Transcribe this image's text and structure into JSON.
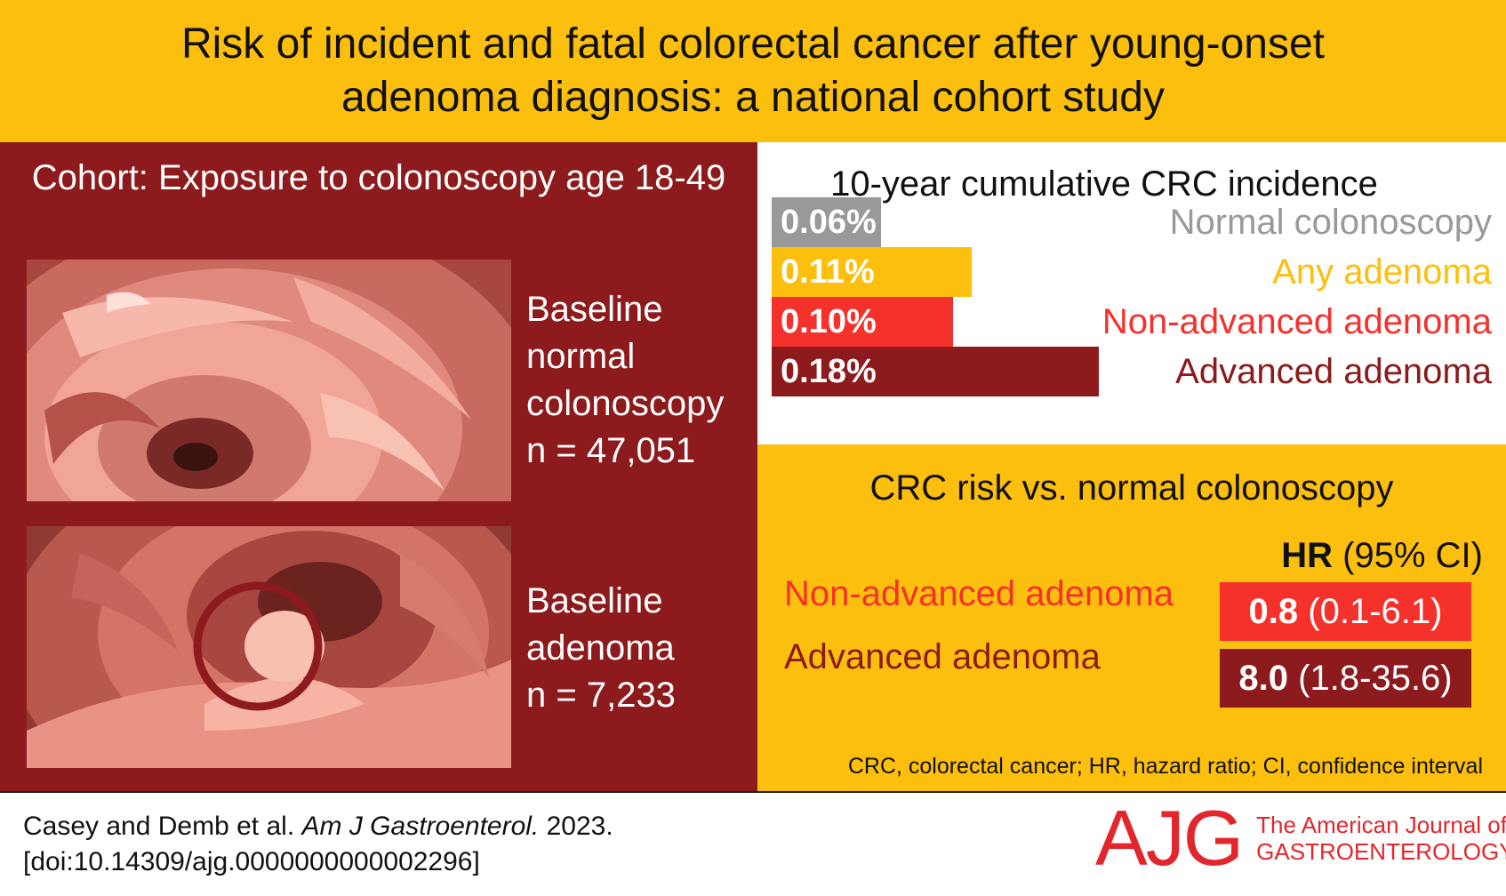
{
  "header": {
    "title": "Risk of incident and fatal colorectal cancer after young-onset adenoma diagnosis: a national cohort study"
  },
  "cohort": {
    "title": "Cohort: Exposure to colonoscopy age 18-49",
    "groups": [
      {
        "label_line1": "Baseline",
        "label_line2": "normal",
        "label_line3": "colonoscopy",
        "n": "n = 47,051"
      },
      {
        "label_line1": "Baseline",
        "label_line2": "adenoma",
        "n": "n = 7,233"
      }
    ]
  },
  "incidence": {
    "title": "10-year cumulative CRC incidence",
    "chart_data": {
      "type": "bar",
      "categories": [
        "Normal colonoscopy",
        "Any adenoma",
        "Non-advanced adenoma",
        "Advanced adenoma"
      ],
      "values": [
        0.06,
        0.11,
        0.1,
        0.18
      ],
      "value_labels": [
        "0.06%",
        "0.11%",
        "0.10%",
        "0.18%"
      ],
      "colors": [
        "#999999",
        "#fcbf0e",
        "#f5312b",
        "#8d1a1c"
      ],
      "label_colors": [
        "#999999",
        "#fcbf0e",
        "#f5312b",
        "#8d1a1c"
      ]
    }
  },
  "hazard": {
    "title": "CRC risk vs. normal colonoscopy",
    "head_bold": "HR",
    "head_rest": " (95% CI)",
    "rows": [
      {
        "label": "Non-advanced adenoma",
        "hr": "0.8",
        "ci": " (0.1-6.1)",
        "color": "#f5312b"
      },
      {
        "label": "Advanced adenoma",
        "hr": "8.0",
        "ci": " (1.8-35.6)",
        "color": "#8d1a1c"
      }
    ],
    "footnote": "CRC, colorectal cancer; HR, hazard ratio; CI, confidence interval"
  },
  "footer": {
    "citation_authors": "Casey and Demb et al. ",
    "citation_journal": "Am J Gastroenterol.",
    "citation_year": " 2023.",
    "citation_doi": "[doi:10.14309/ajg.0000000000002296]",
    "logo_mark": "AJG",
    "logo_line1": "The American Journal of",
    "logo_line2": "GASTROENTEROLOGY"
  }
}
